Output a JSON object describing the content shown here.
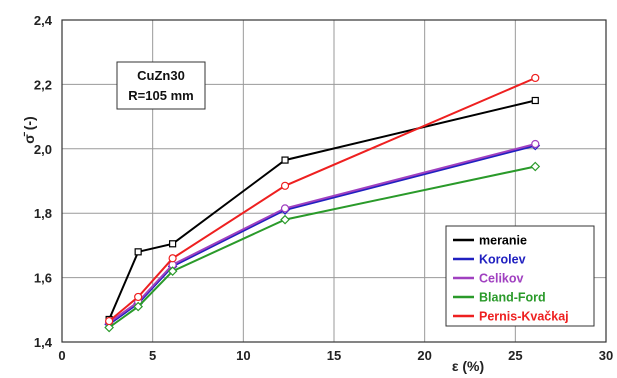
{
  "chart_data": {
    "type": "line",
    "xlabel": "ε (%)",
    "ylabel": "σ̄ (-)",
    "xlim": [
      0,
      30
    ],
    "ylim": [
      1.4,
      2.4
    ],
    "xticks": [
      "0",
      "5",
      "10",
      "15",
      "20",
      "25",
      "30"
    ],
    "yticks": [
      "1,4",
      "1,6",
      "1,8",
      "2,0",
      "2,2",
      "2,4"
    ],
    "grid": true,
    "legend_position": "bottom-right",
    "annotation": [
      "CuZn30",
      "R=105 mm"
    ],
    "series": [
      {
        "name": "meranie",
        "color": "#000000",
        "marker": "square",
        "x": [
          2.6,
          4.2,
          6.1,
          12.3,
          26.1
        ],
        "y": [
          1.47,
          1.68,
          1.705,
          1.965,
          2.15
        ]
      },
      {
        "name": "Korolev",
        "color": "#2020c0",
        "marker": "diamond",
        "x": [
          2.6,
          4.2,
          6.1,
          12.3,
          26.1
        ],
        "y": [
          1.455,
          1.52,
          1.635,
          1.81,
          2.01
        ]
      },
      {
        "name": "Celikov",
        "color": "#a040c0",
        "marker": "circle",
        "x": [
          2.6,
          4.2,
          6.1,
          12.3,
          26.1
        ],
        "y": [
          1.46,
          1.525,
          1.64,
          1.815,
          2.015
        ]
      },
      {
        "name": "Bland-Ford",
        "color": "#2a9a2a",
        "marker": "diamond",
        "x": [
          2.6,
          4.2,
          6.1,
          12.3,
          26.1
        ],
        "y": [
          1.445,
          1.51,
          1.62,
          1.78,
          1.945
        ]
      },
      {
        "name": "Pernis-Kvačkaj",
        "color": "#ee2020",
        "marker": "circle",
        "x": [
          2.6,
          4.2,
          6.1,
          12.3,
          26.1
        ],
        "y": [
          1.465,
          1.54,
          1.66,
          1.885,
          2.22
        ]
      }
    ]
  }
}
